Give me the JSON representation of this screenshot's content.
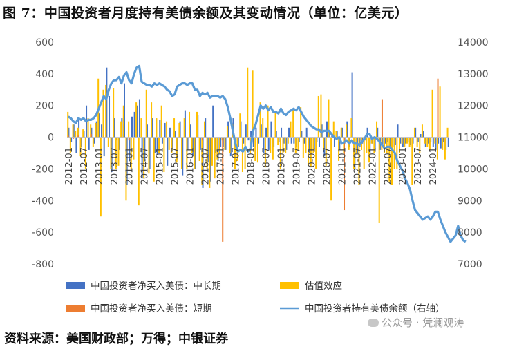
{
  "title": "图 7：中国投资者月度持有美债余额及其变动情况（单位：亿美元）",
  "source": "资料来源：美国财政部；万得；中银证券",
  "watermark": "公众号 · 凭澜观涛",
  "chart_data": {
    "type": "bar+line",
    "start": "2012-01",
    "x_tick_labels": [
      "2012-01",
      "2012-07",
      "2013-01",
      "2013-07",
      "2014-01",
      "2014-07",
      "2015-01",
      "2015-07",
      "2016-01",
      "2016-07",
      "2017-01",
      "2017-07",
      "2018-01",
      "2018-07",
      "2019-01",
      "2019-07",
      "2020-01",
      "2020-07",
      "2021-01",
      "2021-07",
      "2022-01",
      "2022-07",
      "2023-01",
      "2023-07",
      "2024-01"
    ],
    "y_left": {
      "min": -800,
      "max": 600,
      "ticks": [
        "600",
        "400",
        "200",
        "0",
        "-200",
        "-400",
        "-600",
        "-800"
      ]
    },
    "y_right": {
      "min": 7000,
      "max": 14000,
      "ticks": [
        "14000",
        "13000",
        "12000",
        "11000",
        "10000",
        "9000",
        "8000",
        "7000"
      ]
    },
    "legend": [
      {
        "label": "中国投资者净买入美债：中长期",
        "color": "#4472C4",
        "kind": "bar"
      },
      {
        "label": "估值效应",
        "color": "#FFC000",
        "kind": "bar"
      },
      {
        "label": "中国投资者净买入美债：短期",
        "color": "#ED7D31",
        "kind": "bar"
      },
      {
        "label": "中国投资者持有美债余额（右轴）",
        "color": "#5B9BD5",
        "kind": "line"
      }
    ],
    "series": [
      {
        "name": "中国投资者净买入美债：中长期",
        "values": [
          60,
          -30,
          80,
          -100,
          120,
          -60,
          40,
          200,
          -80,
          60,
          -40,
          100,
          150,
          80,
          -120,
          440,
          260,
          -220,
          120,
          -20,
          -80,
          120,
          340,
          -300,
          -150,
          130,
          160,
          200,
          240,
          -260,
          -150,
          80,
          -200,
          120,
          -100,
          -110,
          110,
          -40,
          90,
          -180,
          60,
          -90,
          40,
          -140,
          100,
          -240,
          170,
          -80,
          80,
          -120,
          -200,
          140,
          -80,
          -320,
          120,
          -160,
          -280,
          200,
          -100,
          -150,
          -60,
          -60,
          -80,
          100,
          -120,
          120,
          -60,
          -60,
          100,
          -40,
          80,
          -20,
          40,
          -60,
          60,
          -40,
          80,
          -100,
          60,
          -80,
          100,
          -60,
          40,
          -30,
          60,
          -40,
          -80,
          60,
          -40,
          -40,
          -60,
          -30,
          40,
          -40,
          60,
          -100,
          -90,
          -70,
          -30,
          -60,
          80,
          -120,
          100,
          30,
          20,
          -60,
          40,
          -80,
          60,
          -40,
          100,
          -60,
          410,
          -200,
          -100,
          -60,
          -40,
          -20,
          60,
          -100,
          -40,
          -80,
          60,
          -80,
          -60,
          -40,
          -30,
          -60,
          -60,
          -50,
          80,
          -40,
          -60,
          -40,
          -30,
          -50,
          -40,
          60,
          -30,
          20,
          40,
          -60,
          -40,
          -30,
          -60,
          -80,
          -40,
          -70,
          -30,
          -80,
          -60
        ]
      },
      {
        "name": "估值效应",
        "values": [
          160,
          -100,
          80,
          40,
          60,
          -120,
          50,
          -200,
          120,
          80,
          -60,
          90,
          370,
          -500,
          300,
          330,
          -60,
          -200,
          310,
          -200,
          -180,
          100,
          200,
          -400,
          100,
          -200,
          -140,
          220,
          -430,
          120,
          -260,
          300,
          -230,
          220,
          -280,
          120,
          -100,
          200,
          -220,
          100,
          -80,
          -100,
          120,
          -160,
          90,
          -200,
          120,
          -200,
          160,
          -100,
          -200,
          160,
          -150,
          -300,
          100,
          -200,
          -320,
          -180,
          -260,
          -140,
          -100,
          -20,
          -80,
          70,
          -100,
          80,
          -200,
          -150,
          150,
          -220,
          -200,
          440,
          -100,
          420,
          -150,
          -160,
          220,
          120,
          -190,
          200,
          -100,
          -140,
          160,
          -50,
          -200,
          -100,
          -100,
          -40,
          100,
          180,
          -100,
          -80,
          190,
          -130,
          -100,
          -180,
          -190,
          -100,
          -200,
          260,
          270,
          -80,
          -180,
          240,
          -400,
          100,
          40,
          -150,
          60,
          -100,
          80,
          -80,
          120,
          -200,
          -100,
          -300,
          -80,
          -200,
          -100,
          -160,
          -40,
          -100,
          100,
          -540,
          -80,
          -100,
          -100,
          -280,
          -300,
          -200,
          -200,
          -100,
          -40,
          -60,
          -40,
          -60,
          -300,
          60,
          -60,
          -100,
          80,
          -40,
          -60,
          -80,
          300,
          -40,
          -140,
          320,
          -80,
          -140,
          60
        ]
      },
      {
        "name": "中国投资者净买入美债：短期",
        "values": [
          10,
          0,
          -10,
          0,
          10,
          0,
          0,
          0,
          0,
          20,
          0,
          0,
          0,
          0,
          0,
          0,
          0,
          0,
          0,
          0,
          0,
          0,
          0,
          0,
          -20,
          0,
          0,
          0,
          0,
          0,
          0,
          0,
          0,
          0,
          0,
          0,
          0,
          0,
          0,
          0,
          0,
          0,
          0,
          0,
          0,
          0,
          0,
          0,
          0,
          0,
          0,
          0,
          0,
          -20,
          0,
          0,
          0,
          0,
          0,
          0,
          0,
          -660,
          0,
          0,
          0,
          0,
          0,
          0,
          0,
          0,
          0,
          0,
          0,
          0,
          0,
          0,
          0,
          0,
          0,
          0,
          0,
          0,
          0,
          0,
          0,
          0,
          0,
          0,
          0,
          0,
          0,
          0,
          0,
          0,
          0,
          0,
          0,
          0,
          0,
          0,
          0,
          0,
          0,
          0,
          0,
          0,
          0,
          0,
          0,
          -460,
          0,
          0,
          0,
          0,
          0,
          0,
          0,
          0,
          0,
          0,
          0,
          0,
          0,
          0,
          240,
          0,
          0,
          0,
          0,
          0,
          0,
          0,
          0,
          0,
          0,
          0,
          0,
          0,
          0,
          0,
          0,
          0,
          0,
          0,
          0,
          0,
          370,
          0,
          0,
          0
        ]
      },
      {
        "name": "中国投资者持有美债余额（右轴）",
        "values": [
          11650,
          11600,
          11500,
          11450,
          11600,
          11550,
          11600,
          11500,
          11550,
          11550,
          11600,
          11700,
          11900,
          12100,
          12300,
          12200,
          12500,
          12700,
          12800,
          12800,
          12900,
          12700,
          12950,
          13050,
          12800,
          12700,
          13000,
          13200,
          13250,
          12750,
          12700,
          12650,
          12650,
          12600,
          12700,
          12650,
          12700,
          12650,
          12600,
          12500,
          12450,
          12300,
          12350,
          12600,
          12650,
          12700,
          12700,
          12650,
          12700,
          12700,
          12500,
          12500,
          12300,
          12400,
          12350,
          12400,
          12250,
          12300,
          12300,
          12300,
          12250,
          12300,
          12200,
          11950,
          11600,
          11200,
          10800,
          10550,
          10600,
          10550,
          10700,
          10550,
          10650,
          11200,
          11400,
          11700,
          12000,
          11900,
          12000,
          11850,
          11950,
          11800,
          11800,
          11750,
          11900,
          11750,
          11700,
          11800,
          11850,
          11900,
          11850,
          11950,
          11800,
          11650,
          11550,
          11450,
          11350,
          11300,
          11250,
          11250,
          11150,
          11200,
          11200,
          11200,
          11100,
          11000,
          10950,
          11000,
          10800,
          10850,
          10900,
          10800,
          10900,
          10800,
          10800,
          10750,
          10850,
          10950,
          11100,
          11100,
          10950,
          11000,
          10950,
          10850,
          10750,
          10650,
          10700,
          10700,
          10600,
          10500,
          10250,
          10100,
          9950,
          9700,
          9550,
          9350,
          9000,
          8700,
          8600,
          8500,
          8400,
          8450,
          8500,
          8400,
          8500,
          8650,
          8650,
          8400,
          8200,
          8000,
          7850,
          7700,
          7800,
          7900,
          8200,
          7900,
          7750,
          7700
        ]
      }
    ],
    "grid": false,
    "legend_position": "bottom"
  }
}
